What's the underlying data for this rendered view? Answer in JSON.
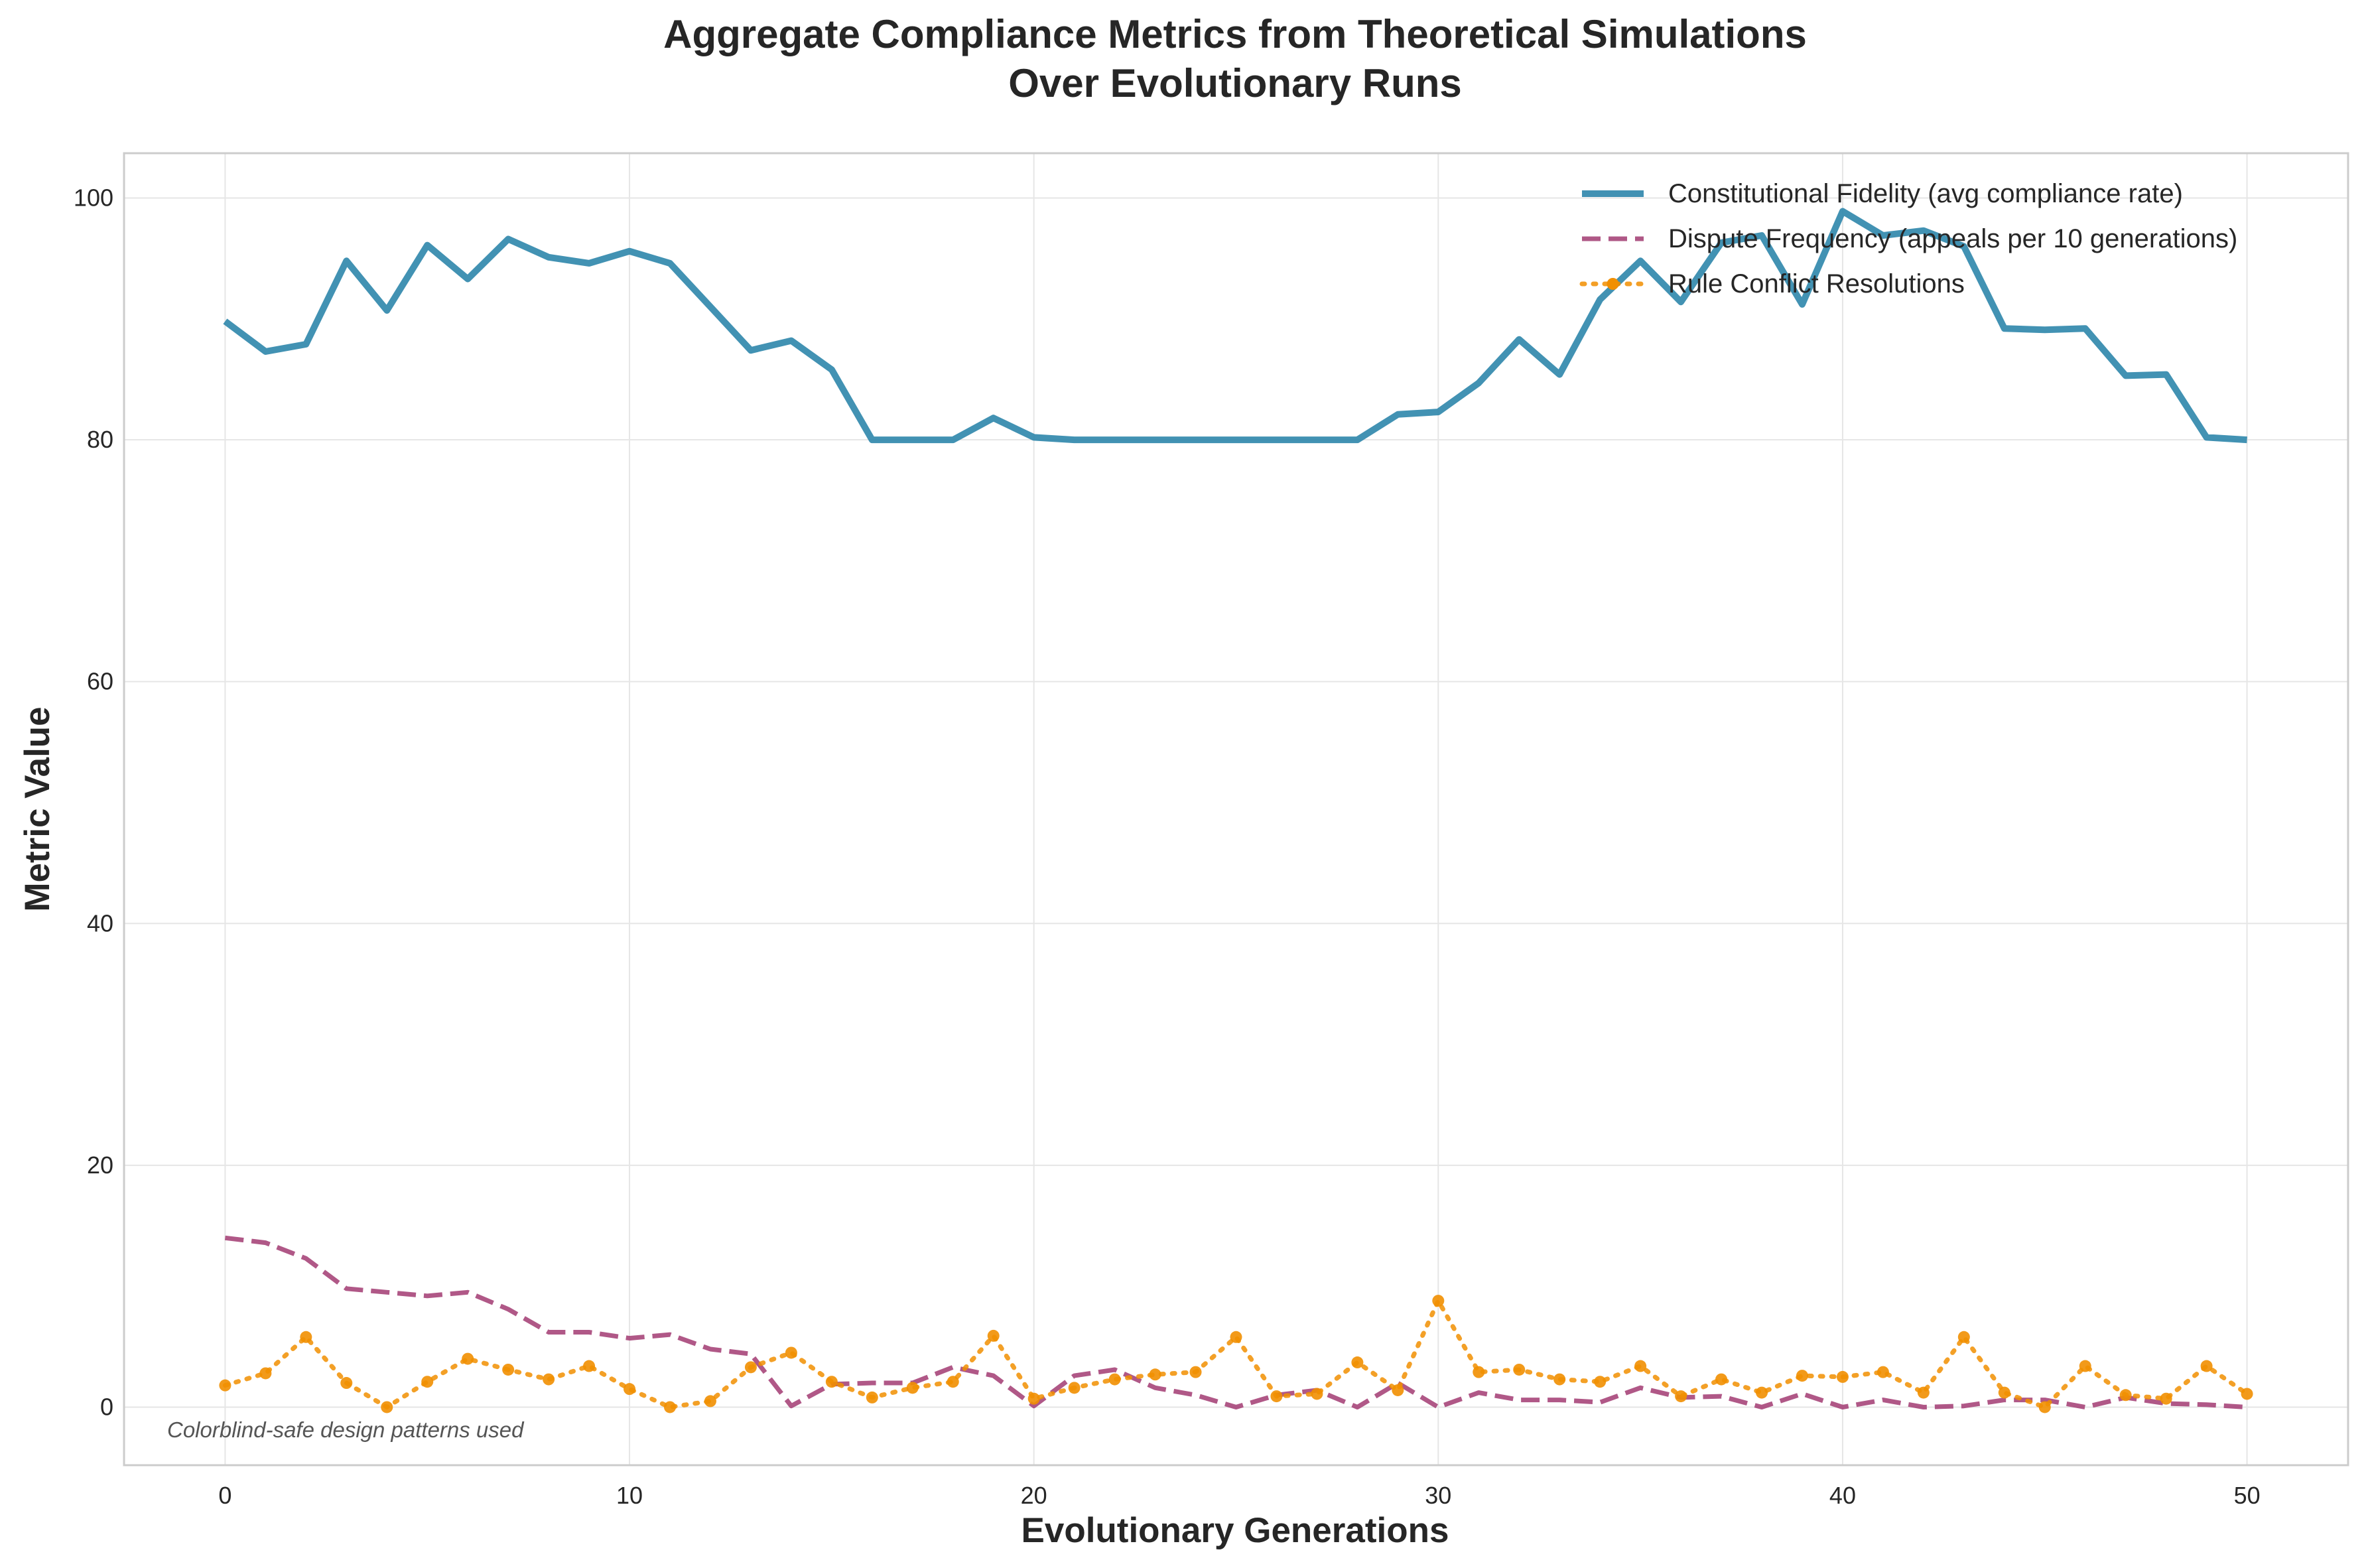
{
  "chart_data": {
    "type": "line",
    "title_line1": "Aggregate Compliance Metrics from Theoretical Simulations",
    "title_line2": "Over Evolutionary Runs",
    "xlabel": "Evolutionary Generations",
    "ylabel": "Metric Value",
    "xlim": [
      -2.5,
      52.5
    ],
    "ylim": [
      -4.8,
      103.7
    ],
    "xticks": [
      0,
      10,
      20,
      30,
      40,
      50
    ],
    "yticks": [
      0,
      20,
      40,
      60,
      80,
      100
    ],
    "grid": true,
    "legend_position": "top-right",
    "annotation": "Colorblind-safe design patterns used",
    "x": [
      0,
      1,
      2,
      3,
      4,
      5,
      6,
      7,
      8,
      9,
      10,
      11,
      12,
      13,
      14,
      15,
      16,
      17,
      18,
      19,
      20,
      21,
      22,
      23,
      24,
      25,
      26,
      27,
      28,
      29,
      30,
      31,
      32,
      33,
      34,
      35,
      36,
      37,
      38,
      39,
      40,
      41,
      42,
      43,
      44,
      45,
      46,
      47,
      48,
      49,
      50
    ],
    "series": [
      {
        "name": "Constitutional Fidelity (avg compliance rate)",
        "color": "#2E86AB",
        "style": "solid",
        "values": [
          89.8,
          87.3,
          87.9,
          94.8,
          90.7,
          96.1,
          93.3,
          96.6,
          95.1,
          94.6,
          95.6,
          94.6,
          91.0,
          87.4,
          88.2,
          85.8,
          80.0,
          80.0,
          80.0,
          81.8,
          80.2,
          80.0,
          80.0,
          80.0,
          80.0,
          80.0,
          80.0,
          80.0,
          80.0,
          82.1,
          82.3,
          84.7,
          88.3,
          85.4,
          91.6,
          94.8,
          91.4,
          96.3,
          96.9,
          91.2,
          98.9,
          96.9,
          97.3,
          96.0,
          89.2,
          89.1,
          89.2,
          85.3,
          85.4,
          80.2,
          80.0
        ]
      },
      {
        "name": "Dispute Frequency (appeals per 10 generations)",
        "color": "#A23B72",
        "style": "dashed",
        "values": [
          14.0,
          13.6,
          12.3,
          9.8,
          9.5,
          9.2,
          9.5,
          8.1,
          6.2,
          6.2,
          5.7,
          6.0,
          4.8,
          4.4,
          0.1,
          1.9,
          2.0,
          2.0,
          3.3,
          2.6,
          0.1,
          2.6,
          3.1,
          1.6,
          1.0,
          0.0,
          1.0,
          1.4,
          0.0,
          2.0,
          0.0,
          1.2,
          0.6,
          0.6,
          0.4,
          1.6,
          0.8,
          0.9,
          0.0,
          1.1,
          0.0,
          0.6,
          0.0,
          0.1,
          0.6,
          0.6,
          0.0,
          0.8,
          0.3,
          0.2,
          0.0
        ]
      },
      {
        "name": "Rule Conflict Resolutions",
        "color": "#F18F01",
        "style": "dotted",
        "values": [
          1.8,
          2.8,
          5.8,
          2.0,
          0.0,
          2.1,
          4.0,
          3.1,
          2.3,
          3.4,
          1.5,
          0.0,
          0.5,
          3.3,
          4.5,
          2.1,
          0.8,
          1.6,
          2.1,
          5.9,
          0.7,
          1.6,
          2.3,
          2.7,
          2.9,
          5.8,
          0.9,
          1.1,
          3.7,
          1.4,
          8.8,
          2.9,
          3.1,
          2.3,
          2.1,
          3.4,
          0.9,
          2.3,
          1.2,
          2.6,
          2.5,
          2.9,
          1.2,
          5.8,
          1.2,
          0.0,
          3.4,
          1.0,
          0.7,
          3.4,
          1.1
        ]
      }
    ]
  }
}
